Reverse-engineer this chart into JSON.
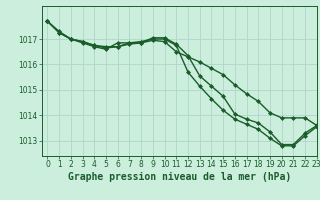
{
  "title": "Graphe pression niveau de la mer (hPa)",
  "background_color": "#cceedd",
  "grid_color": "#b0d4cc",
  "line_color": "#1a5c2a",
  "xlim": [
    -0.5,
    23
  ],
  "ylim": [
    1012.4,
    1018.3
  ],
  "yticks": [
    1013,
    1014,
    1015,
    1016,
    1017
  ],
  "xticks": [
    0,
    1,
    2,
    3,
    4,
    5,
    6,
    7,
    8,
    9,
    10,
    11,
    12,
    13,
    14,
    15,
    16,
    17,
    18,
    19,
    20,
    21,
    22,
    23
  ],
  "series1_x": [
    0,
    1,
    2,
    3,
    4,
    5,
    6,
    7,
    8,
    9,
    10,
    11,
    12,
    13,
    14,
    15,
    16,
    17,
    18,
    19,
    20,
    21,
    22,
    23
  ],
  "series1_y": [
    1017.7,
    1017.3,
    1017.0,
    1016.85,
    1016.7,
    1016.6,
    1016.85,
    1016.85,
    1016.85,
    1017.05,
    1017.05,
    1016.8,
    1016.35,
    1015.55,
    1015.15,
    1014.75,
    1014.05,
    1013.85,
    1013.7,
    1013.35,
    1012.85,
    1012.85,
    1013.3,
    1013.6
  ],
  "series2_x": [
    0,
    1,
    2,
    3,
    4,
    5,
    6,
    7,
    8,
    9,
    10,
    11,
    12,
    13,
    14,
    15,
    16,
    17,
    18,
    19,
    20,
    21,
    22,
    23
  ],
  "series2_y": [
    1017.7,
    1017.25,
    1017.0,
    1016.9,
    1016.75,
    1016.7,
    1016.7,
    1016.85,
    1016.9,
    1017.0,
    1017.0,
    1016.75,
    1015.7,
    1015.15,
    1014.65,
    1014.2,
    1013.85,
    1013.65,
    1013.45,
    1013.1,
    1012.8,
    1012.8,
    1013.2,
    1013.55
  ],
  "series3_x": [
    0,
    1,
    2,
    3,
    4,
    5,
    6,
    7,
    8,
    9,
    10,
    11,
    12,
    13,
    14,
    15,
    16,
    17,
    18,
    19,
    20,
    21,
    22,
    23
  ],
  "series3_y": [
    1017.7,
    1017.25,
    1017.0,
    1016.9,
    1016.75,
    1016.65,
    1016.7,
    1016.8,
    1016.85,
    1016.95,
    1016.9,
    1016.5,
    1016.3,
    1016.1,
    1015.85,
    1015.6,
    1015.2,
    1014.85,
    1014.55,
    1014.1,
    1013.9,
    1013.9,
    1013.9,
    1013.6
  ],
  "marker": "D",
  "markersize": 2.0,
  "linewidth": 1.0,
  "title_fontsize": 7,
  "tick_fontsize": 5.5
}
